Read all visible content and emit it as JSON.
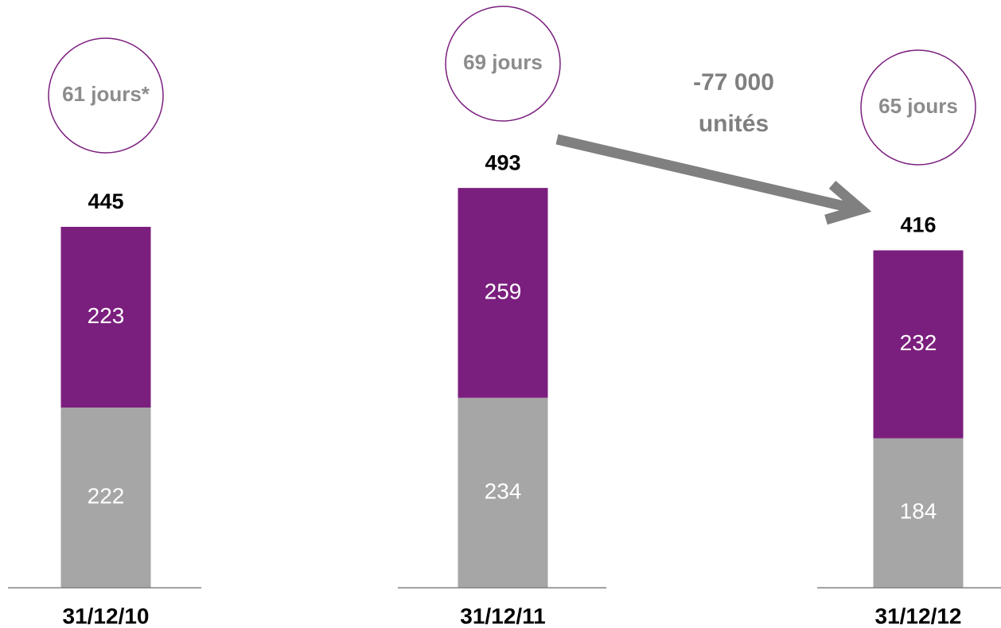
{
  "chart_data": {
    "type": "stacked_bar",
    "categories": [
      "31/12/10",
      "31/12/11",
      "31/12/12"
    ],
    "series": [
      {
        "color": "#a6a6a6",
        "values": [
          222,
          234,
          184
        ]
      },
      {
        "color": "#7b1f7e",
        "values": [
          223,
          259,
          232
        ]
      }
    ],
    "totals": [
      445,
      493,
      416
    ],
    "circle_labels": [
      "61 jours*",
      "69 jours",
      "65 jours"
    ],
    "circle_color": "#7b1f7e",
    "annotation": [
      "-77 000",
      "unités"
    ]
  }
}
